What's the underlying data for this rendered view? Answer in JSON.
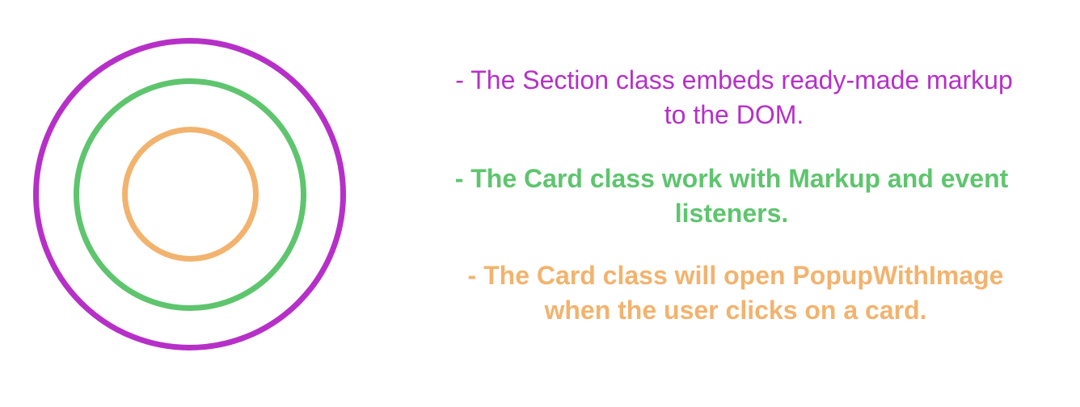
{
  "colors": {
    "section": "#b630c8",
    "card": "#5ec56e",
    "popup": "#f2b36e"
  },
  "rings": [
    {
      "name": "section",
      "color": "#b630c8"
    },
    {
      "name": "card",
      "color": "#5ec56e"
    },
    {
      "name": "popup-with-image",
      "color": "#f2b36e"
    }
  ],
  "descriptions": {
    "section": {
      "line1": "- The Section class embeds ready-made markup",
      "line2": "to the DOM."
    },
    "card": {
      "line1": "- The Card class work with Markup and event",
      "line2": "listeners."
    },
    "popup": {
      "line1": "- The Card class will open PopupWithImage",
      "line2": "when the user clicks on a card."
    }
  }
}
